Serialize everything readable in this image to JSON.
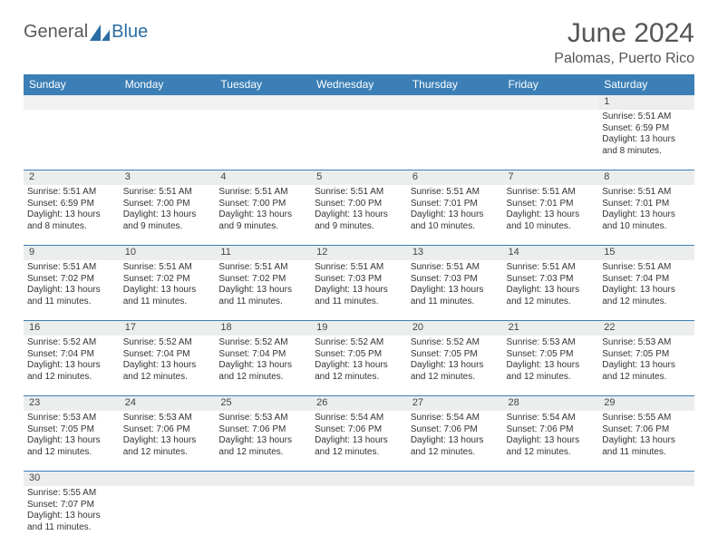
{
  "logo": {
    "general": "General",
    "blue": "Blue"
  },
  "title": "June 2024",
  "location": "Palomas, Puerto Rico",
  "dayHeaders": [
    "Sunday",
    "Monday",
    "Tuesday",
    "Wednesday",
    "Thursday",
    "Friday",
    "Saturday"
  ],
  "colors": {
    "headerBg": "#3b7fb6",
    "numRowBg": "#eceeee",
    "border": "#3b7fb6"
  },
  "weeks": [
    {
      "nums": [
        "",
        "",
        "",
        "",
        "",
        "",
        "1"
      ],
      "cells": [
        null,
        null,
        null,
        null,
        null,
        null,
        {
          "sunrise": "5:51 AM",
          "sunset": "6:59 PM",
          "daylight": "13 hours and 8 minutes."
        }
      ]
    },
    {
      "nums": [
        "2",
        "3",
        "4",
        "5",
        "6",
        "7",
        "8"
      ],
      "cells": [
        {
          "sunrise": "5:51 AM",
          "sunset": "6:59 PM",
          "daylight": "13 hours and 8 minutes."
        },
        {
          "sunrise": "5:51 AM",
          "sunset": "7:00 PM",
          "daylight": "13 hours and 9 minutes."
        },
        {
          "sunrise": "5:51 AM",
          "sunset": "7:00 PM",
          "daylight": "13 hours and 9 minutes."
        },
        {
          "sunrise": "5:51 AM",
          "sunset": "7:00 PM",
          "daylight": "13 hours and 9 minutes."
        },
        {
          "sunrise": "5:51 AM",
          "sunset": "7:01 PM",
          "daylight": "13 hours and 10 minutes."
        },
        {
          "sunrise": "5:51 AM",
          "sunset": "7:01 PM",
          "daylight": "13 hours and 10 minutes."
        },
        {
          "sunrise": "5:51 AM",
          "sunset": "7:01 PM",
          "daylight": "13 hours and 10 minutes."
        }
      ]
    },
    {
      "nums": [
        "9",
        "10",
        "11",
        "12",
        "13",
        "14",
        "15"
      ],
      "cells": [
        {
          "sunrise": "5:51 AM",
          "sunset": "7:02 PM",
          "daylight": "13 hours and 11 minutes."
        },
        {
          "sunrise": "5:51 AM",
          "sunset": "7:02 PM",
          "daylight": "13 hours and 11 minutes."
        },
        {
          "sunrise": "5:51 AM",
          "sunset": "7:02 PM",
          "daylight": "13 hours and 11 minutes."
        },
        {
          "sunrise": "5:51 AM",
          "sunset": "7:03 PM",
          "daylight": "13 hours and 11 minutes."
        },
        {
          "sunrise": "5:51 AM",
          "sunset": "7:03 PM",
          "daylight": "13 hours and 11 minutes."
        },
        {
          "sunrise": "5:51 AM",
          "sunset": "7:03 PM",
          "daylight": "13 hours and 12 minutes."
        },
        {
          "sunrise": "5:51 AM",
          "sunset": "7:04 PM",
          "daylight": "13 hours and 12 minutes."
        }
      ]
    },
    {
      "nums": [
        "16",
        "17",
        "18",
        "19",
        "20",
        "21",
        "22"
      ],
      "cells": [
        {
          "sunrise": "5:52 AM",
          "sunset": "7:04 PM",
          "daylight": "13 hours and 12 minutes."
        },
        {
          "sunrise": "5:52 AM",
          "sunset": "7:04 PM",
          "daylight": "13 hours and 12 minutes."
        },
        {
          "sunrise": "5:52 AM",
          "sunset": "7:04 PM",
          "daylight": "13 hours and 12 minutes."
        },
        {
          "sunrise": "5:52 AM",
          "sunset": "7:05 PM",
          "daylight": "13 hours and 12 minutes."
        },
        {
          "sunrise": "5:52 AM",
          "sunset": "7:05 PM",
          "daylight": "13 hours and 12 minutes."
        },
        {
          "sunrise": "5:53 AM",
          "sunset": "7:05 PM",
          "daylight": "13 hours and 12 minutes."
        },
        {
          "sunrise": "5:53 AM",
          "sunset": "7:05 PM",
          "daylight": "13 hours and 12 minutes."
        }
      ]
    },
    {
      "nums": [
        "23",
        "24",
        "25",
        "26",
        "27",
        "28",
        "29"
      ],
      "cells": [
        {
          "sunrise": "5:53 AM",
          "sunset": "7:05 PM",
          "daylight": "13 hours and 12 minutes."
        },
        {
          "sunrise": "5:53 AM",
          "sunset": "7:06 PM",
          "daylight": "13 hours and 12 minutes."
        },
        {
          "sunrise": "5:53 AM",
          "sunset": "7:06 PM",
          "daylight": "13 hours and 12 minutes."
        },
        {
          "sunrise": "5:54 AM",
          "sunset": "7:06 PM",
          "daylight": "13 hours and 12 minutes."
        },
        {
          "sunrise": "5:54 AM",
          "sunset": "7:06 PM",
          "daylight": "13 hours and 12 minutes."
        },
        {
          "sunrise": "5:54 AM",
          "sunset": "7:06 PM",
          "daylight": "13 hours and 12 minutes."
        },
        {
          "sunrise": "5:55 AM",
          "sunset": "7:06 PM",
          "daylight": "13 hours and 11 minutes."
        }
      ]
    },
    {
      "nums": [
        "30",
        "",
        "",
        "",
        "",
        "",
        ""
      ],
      "cells": [
        {
          "sunrise": "5:55 AM",
          "sunset": "7:07 PM",
          "daylight": "13 hours and 11 minutes."
        },
        null,
        null,
        null,
        null,
        null,
        null
      ]
    }
  ]
}
